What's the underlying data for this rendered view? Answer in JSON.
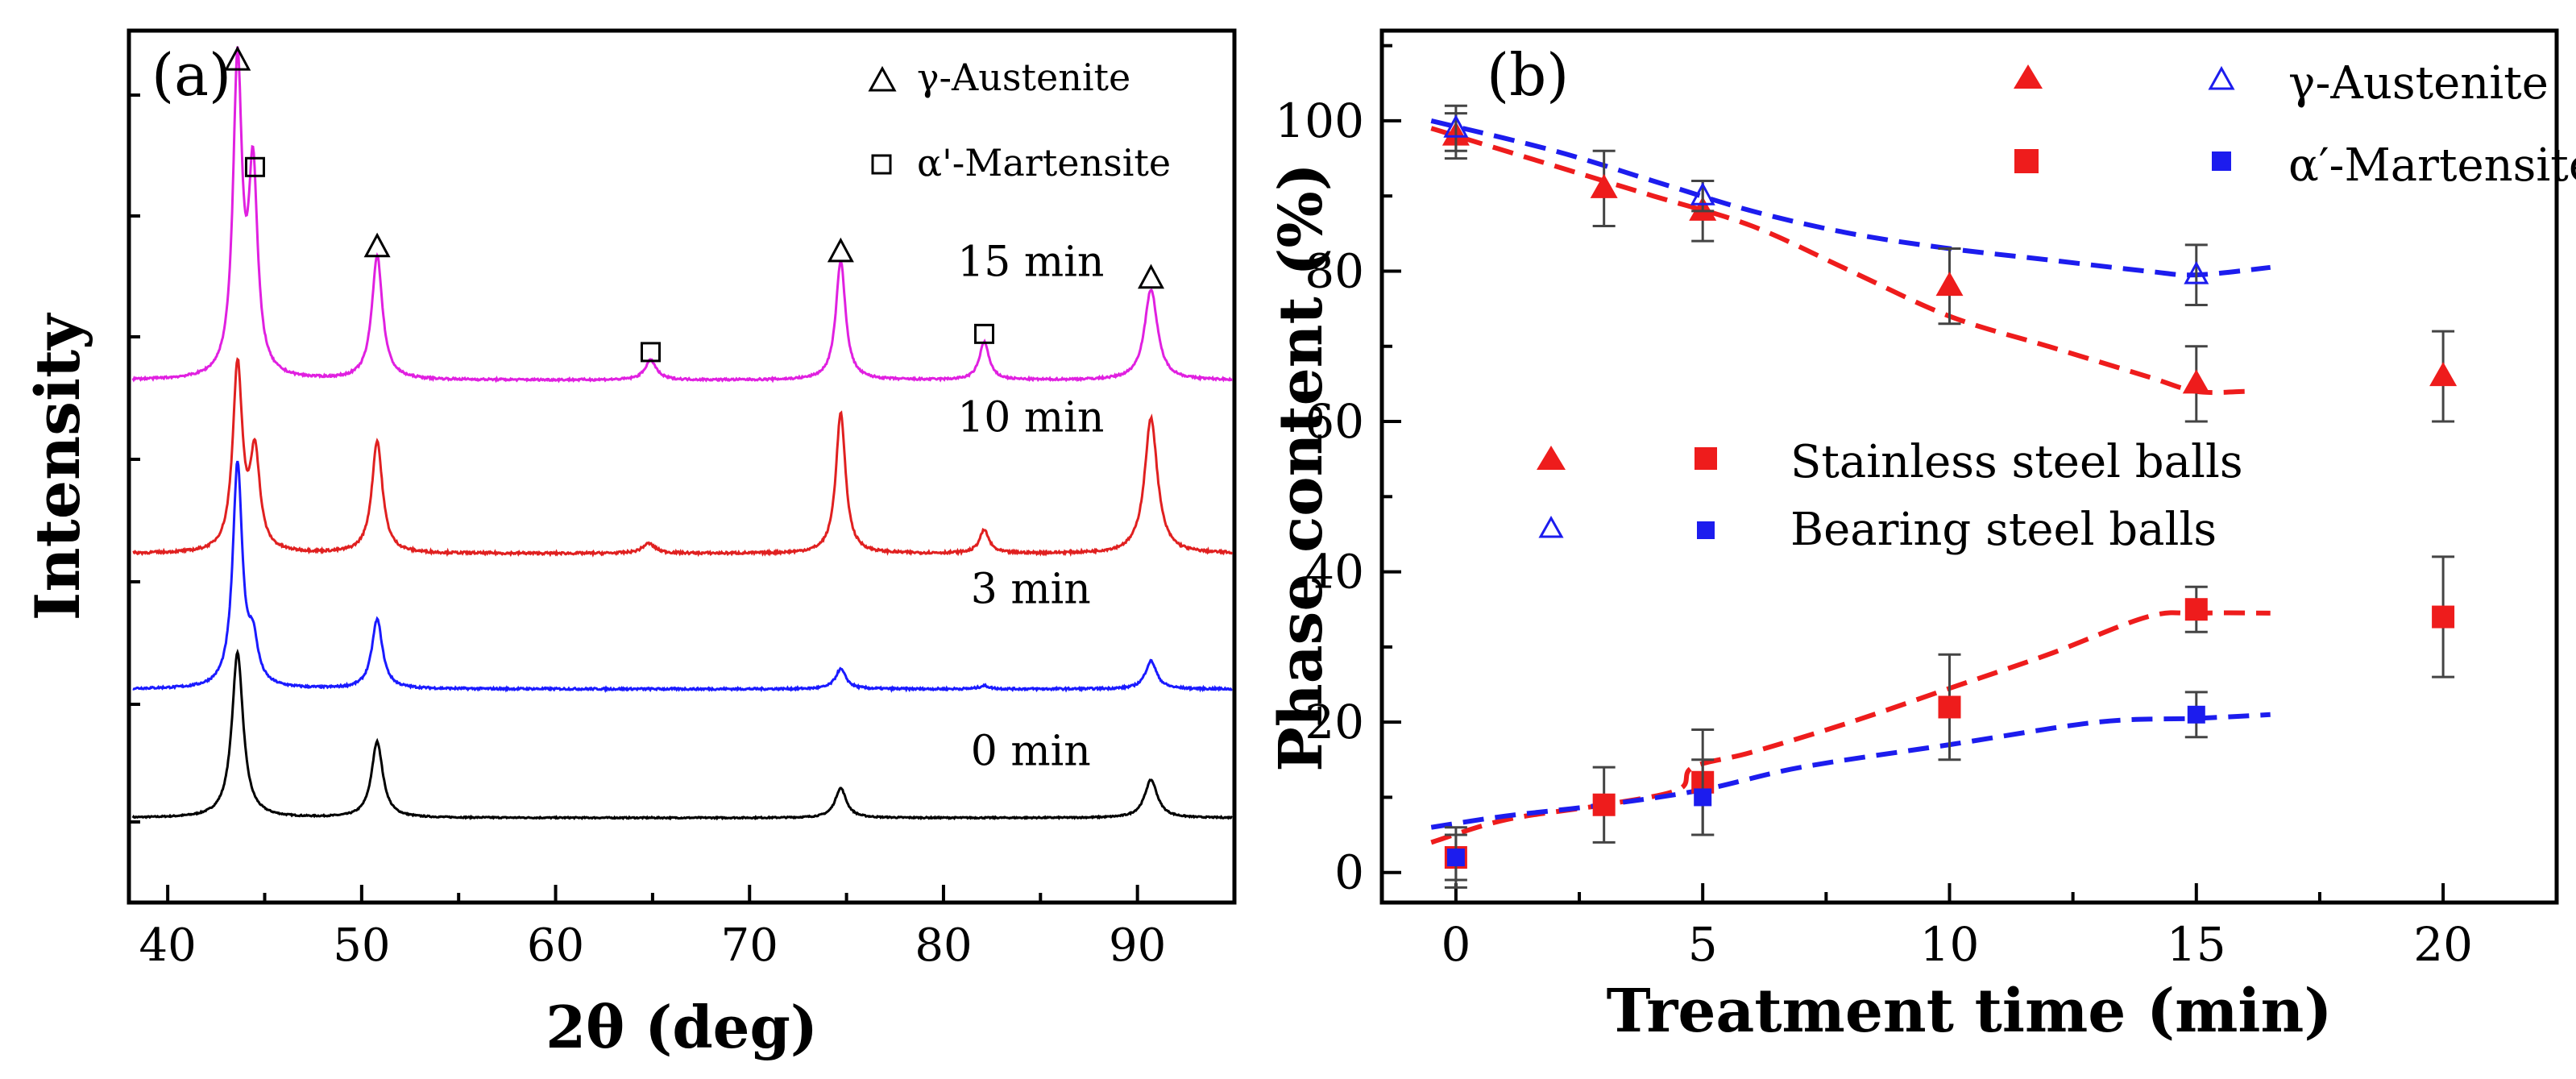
{
  "chart_data": [
    {
      "type": "line",
      "panel_label": "(a)",
      "xlabel": "2θ (deg)",
      "ylabel": "Intensity",
      "xlim": [
        38,
        95
      ],
      "xticks": [
        40,
        50,
        60,
        70,
        80,
        90
      ],
      "xtick_labels": [
        "40",
        "50",
        "60",
        "70",
        "80",
        "90"
      ],
      "legend": [
        {
          "symbol": "triangle",
          "label": "γ-Austenite"
        },
        {
          "symbol": "square",
          "label": "α'-Martensite"
        }
      ],
      "series": [
        {
          "name": "0 min",
          "color": "#000000",
          "baseline": 0.0,
          "noise": 0.004,
          "peaks": [
            [
              43.6,
              1.0,
              0.35
            ],
            [
              50.8,
              0.46,
              0.35
            ],
            [
              74.7,
              0.18,
              0.35
            ],
            [
              90.7,
              0.23,
              0.4
            ]
          ]
        },
        {
          "name": "3 min",
          "color": "#1a1aff",
          "baseline": 0.78,
          "noise": 0.006,
          "peaks": [
            [
              43.6,
              1.35,
              0.3
            ],
            [
              44.4,
              0.25,
              0.3
            ],
            [
              50.8,
              0.42,
              0.33
            ],
            [
              74.7,
              0.12,
              0.33
            ],
            [
              82.1,
              0.02,
              0.3
            ],
            [
              90.7,
              0.17,
              0.35
            ]
          ]
        },
        {
          "name": "10 min",
          "color": "#e02020",
          "baseline": 1.6,
          "noise": 0.007,
          "peaks": [
            [
              43.6,
              1.12,
              0.3
            ],
            [
              44.5,
              0.58,
              0.3
            ],
            [
              50.8,
              0.68,
              0.33
            ],
            [
              64.8,
              0.06,
              0.4
            ],
            [
              74.7,
              0.85,
              0.3
            ],
            [
              82.1,
              0.14,
              0.3
            ],
            [
              90.7,
              0.82,
              0.4
            ]
          ]
        },
        {
          "name": "15 min",
          "color": "#e020e0",
          "baseline": 2.65,
          "noise": 0.006,
          "peaks": [
            [
              43.6,
              1.88,
              0.28
            ],
            [
              44.4,
              1.21,
              0.28
            ],
            [
              50.8,
              0.75,
              0.33
            ],
            [
              64.9,
              0.12,
              0.35
            ],
            [
              74.7,
              0.72,
              0.3
            ],
            [
              82.1,
              0.23,
              0.3
            ],
            [
              90.7,
              0.55,
              0.4
            ]
          ]
        }
      ],
      "peak_markers": [
        {
          "symbol": "triangle",
          "x": 43.6,
          "series": "15 min",
          "y": 4.58
        },
        {
          "symbol": "square",
          "x": 44.5,
          "series": "15 min",
          "y": 3.94
        },
        {
          "symbol": "triangle",
          "x": 50.8,
          "series": "15 min",
          "y": 3.45
        },
        {
          "symbol": "square",
          "x": 64.9,
          "series": "15 min",
          "y": 2.82
        },
        {
          "symbol": "triangle",
          "x": 74.7,
          "series": "15 min",
          "y": 3.42
        },
        {
          "symbol": "square",
          "x": 82.1,
          "series": "15 min",
          "y": 2.93
        },
        {
          "symbol": "triangle",
          "x": 90.7,
          "series": "15 min",
          "y": 3.26
        }
      ],
      "curve_labels": [
        {
          "text": "15 min",
          "x": 84.5,
          "y": 3.28
        },
        {
          "text": "10 min",
          "x": 84.5,
          "y": 2.34
        },
        {
          "text": "3 min",
          "x": 84.5,
          "y": 1.3
        },
        {
          "text": "0 min",
          "x": 84.5,
          "y": 0.32
        }
      ]
    },
    {
      "type": "scatter",
      "panel_label": "(b)",
      "xlabel": "Treatment time (min)",
      "ylabel": "Phase content (%)",
      "xlim": [
        -1.5,
        22.3
      ],
      "ylim": [
        -4,
        112
      ],
      "xticks": [
        0,
        5,
        10,
        15,
        20
      ],
      "xtick_labels": [
        "0",
        "5",
        "10",
        "15",
        "20"
      ],
      "yticks": [
        0,
        20,
        40,
        60,
        80,
        100
      ],
      "ytick_labels": [
        "0",
        "20",
        "40",
        "60",
        "80",
        "100"
      ],
      "legend_phase": [
        {
          "label": "γ-Austenite",
          "stainless_symbol": "filled-triangle",
          "bearing_symbol": "open-triangle"
        },
        {
          "label": "α′-Martensite",
          "stainless_symbol": "filled-square",
          "bearing_symbol": "filled-square"
        }
      ],
      "legend_ball": [
        {
          "label": "Stainless steel balls",
          "color": "#ee1c1c"
        },
        {
          "label": "Bearing steel balls",
          "color": "#1c1cee"
        }
      ],
      "series": [
        {
          "name": "Stainless steel balls γ-Austenite",
          "color": "#ee1c1c",
          "marker": "filled-triangle",
          "x": [
            0,
            3,
            5,
            10,
            15,
            20
          ],
          "y": [
            98,
            91,
            88,
            78,
            65,
            66
          ],
          "err": [
            3,
            5,
            4,
            5,
            5,
            6
          ]
        },
        {
          "name": "Bearing steel balls γ-Austenite",
          "color": "#1c1cee",
          "marker": "open-triangle",
          "x": [
            0,
            5,
            15
          ],
          "y": [
            99,
            90,
            79.5
          ],
          "err": [
            3,
            2,
            4
          ]
        },
        {
          "name": "Stainless steel balls α′-Martensite",
          "color": "#ee1c1c",
          "marker": "filled-square",
          "x": [
            0,
            3,
            5,
            10,
            15,
            20
          ],
          "y": [
            2,
            9,
            12,
            22,
            35,
            34
          ],
          "err": [
            4,
            5,
            7,
            7,
            3,
            8
          ]
        },
        {
          "name": "Bearing steel balls α′-Martensite",
          "color": "#1c1cee",
          "marker": "filled-square",
          "x": [
            0,
            5,
            15
          ],
          "y": [
            2,
            10,
            21
          ],
          "err": [
            3,
            5,
            3
          ]
        }
      ],
      "trend_lines": [
        {
          "name": "Stainless γ trend",
          "color": "#ee1c1c",
          "x": [
            -0.5,
            2,
            4,
            6,
            8,
            10,
            12,
            14,
            15,
            16
          ],
          "y": [
            99,
            94,
            90,
            86,
            80,
            74,
            70,
            66,
            64,
            64
          ]
        },
        {
          "name": "Bearing γ trend",
          "color": "#1c1cee",
          "x": [
            -0.5,
            2,
            4,
            6,
            8,
            10,
            12,
            14,
            15,
            16.5
          ],
          "y": [
            100,
            96,
            92,
            88,
            85,
            83,
            81.5,
            80,
            79.5,
            80.5
          ]
        },
        {
          "name": "Stainless α′ trend",
          "color": "#ee1c1c",
          "x": [
            -0.5,
            1,
            3,
            4.5,
            4.8,
            6,
            8,
            10,
            12,
            14,
            15,
            16.5
          ],
          "y": [
            4,
            7,
            9,
            11,
            14,
            16,
            20,
            24.5,
            29,
            34,
            34.5,
            34.5
          ]
        },
        {
          "name": "Bearing α′ trend",
          "color": "#1c1cee",
          "x": [
            -0.5,
            1,
            3,
            5,
            7,
            10,
            13,
            15,
            16.5
          ],
          "y": [
            6,
            7.5,
            9,
            11,
            14,
            17,
            20,
            20.5,
            21
          ]
        }
      ]
    }
  ]
}
